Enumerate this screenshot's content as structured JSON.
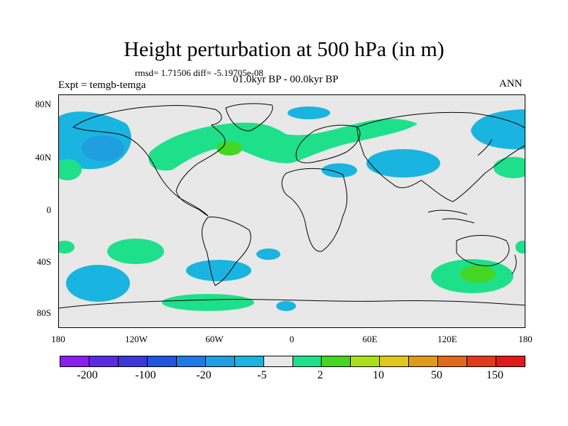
{
  "title": "Height perturbation at 500 hPa (in m)",
  "stats": "rmsd= 1.71506 diff= -5.19705e-08",
  "period": "01.0kyr BP - 00.0kyr BP",
  "experiment": "Expt = temgb-temga",
  "season": "ANN",
  "lat_labels": [
    "80N",
    "40N",
    "0",
    "40S",
    "80S"
  ],
  "lon_labels": [
    "180",
    "120W",
    "60W",
    "0",
    "60E",
    "120E",
    "180"
  ],
  "legend": {
    "colors": [
      "#8a1ff0",
      "#5a2be0",
      "#3a38d8",
      "#1f55e0",
      "#1f7ae6",
      "#1f9ee0",
      "#1ab4e0",
      "#e8e8e8",
      "#1fe08a",
      "#44d622",
      "#a8e01a",
      "#e0c81a",
      "#e09a1a",
      "#e06a1a",
      "#e03a1a",
      "#e01a1a"
    ],
    "labels": [
      "-200",
      "-100",
      "-20",
      "-5",
      "2",
      "10",
      "50",
      "150"
    ]
  },
  "colors": {
    "background": "#e8e8e8",
    "neg_light": "#1ab4e0",
    "neg_mid": "#1f9ee0",
    "pos_light": "#1fe08a",
    "pos_mid": "#44d622"
  }
}
